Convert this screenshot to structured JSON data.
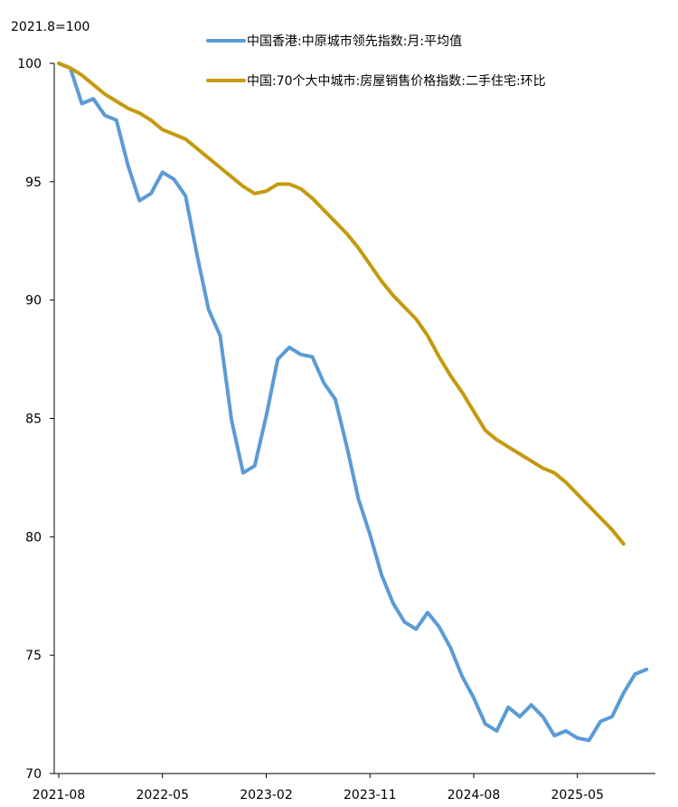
{
  "chart_data": {
    "type": "line",
    "unit_note": "2021.8=100",
    "x_ticks": [
      "2021-08",
      "2022-05",
      "2023-02",
      "2023-11",
      "2024-08",
      "2025-05"
    ],
    "ylim": [
      70,
      100
    ],
    "y_ticks": [
      70,
      75,
      80,
      85,
      90,
      95,
      100
    ],
    "grid": false,
    "legend_placement": "top",
    "series": [
      {
        "name": "中国香港:中原城市领先指数:月:平均值",
        "color": "#5b9bd5",
        "values": [
          100,
          99.8,
          98.3,
          98.5,
          97.8,
          97.6,
          95.7,
          94.2,
          94.5,
          95.4,
          95.1,
          94.4,
          91.9,
          89.6,
          88.5,
          84.9,
          82.7,
          83.0,
          85.1,
          87.5,
          88.0,
          87.7,
          87.6,
          86.5,
          85.8,
          83.8,
          81.6,
          80.1,
          78.4,
          77.2,
          76.4,
          76.1,
          76.8,
          76.2,
          75.3,
          74.1,
          73.2,
          72.1,
          71.8,
          72.8,
          72.4,
          72.9,
          72.4,
          71.6,
          71.8,
          71.5,
          71.4,
          72.2,
          72.4,
          73.4,
          74.2,
          74.4
        ]
      },
      {
        "name": "中国:70个大中城市:房屋销售价格指数:二手住宅:环比",
        "color": "#c49a0e",
        "values": [
          100,
          99.8,
          99.5,
          99.1,
          98.7,
          98.4,
          98.1,
          97.9,
          97.6,
          97.2,
          97.0,
          96.8,
          96.4,
          96.0,
          95.6,
          95.2,
          94.8,
          94.5,
          94.6,
          94.9,
          94.9,
          94.7,
          94.3,
          93.8,
          93.3,
          92.8,
          92.2,
          91.5,
          90.8,
          90.2,
          89.7,
          89.2,
          88.5,
          87.6,
          86.8,
          86.1,
          85.3,
          84.5,
          84.1,
          83.8,
          83.5,
          83.2,
          82.9,
          82.7,
          82.3,
          81.8,
          81.3,
          80.8,
          80.3,
          79.7
        ]
      }
    ]
  }
}
